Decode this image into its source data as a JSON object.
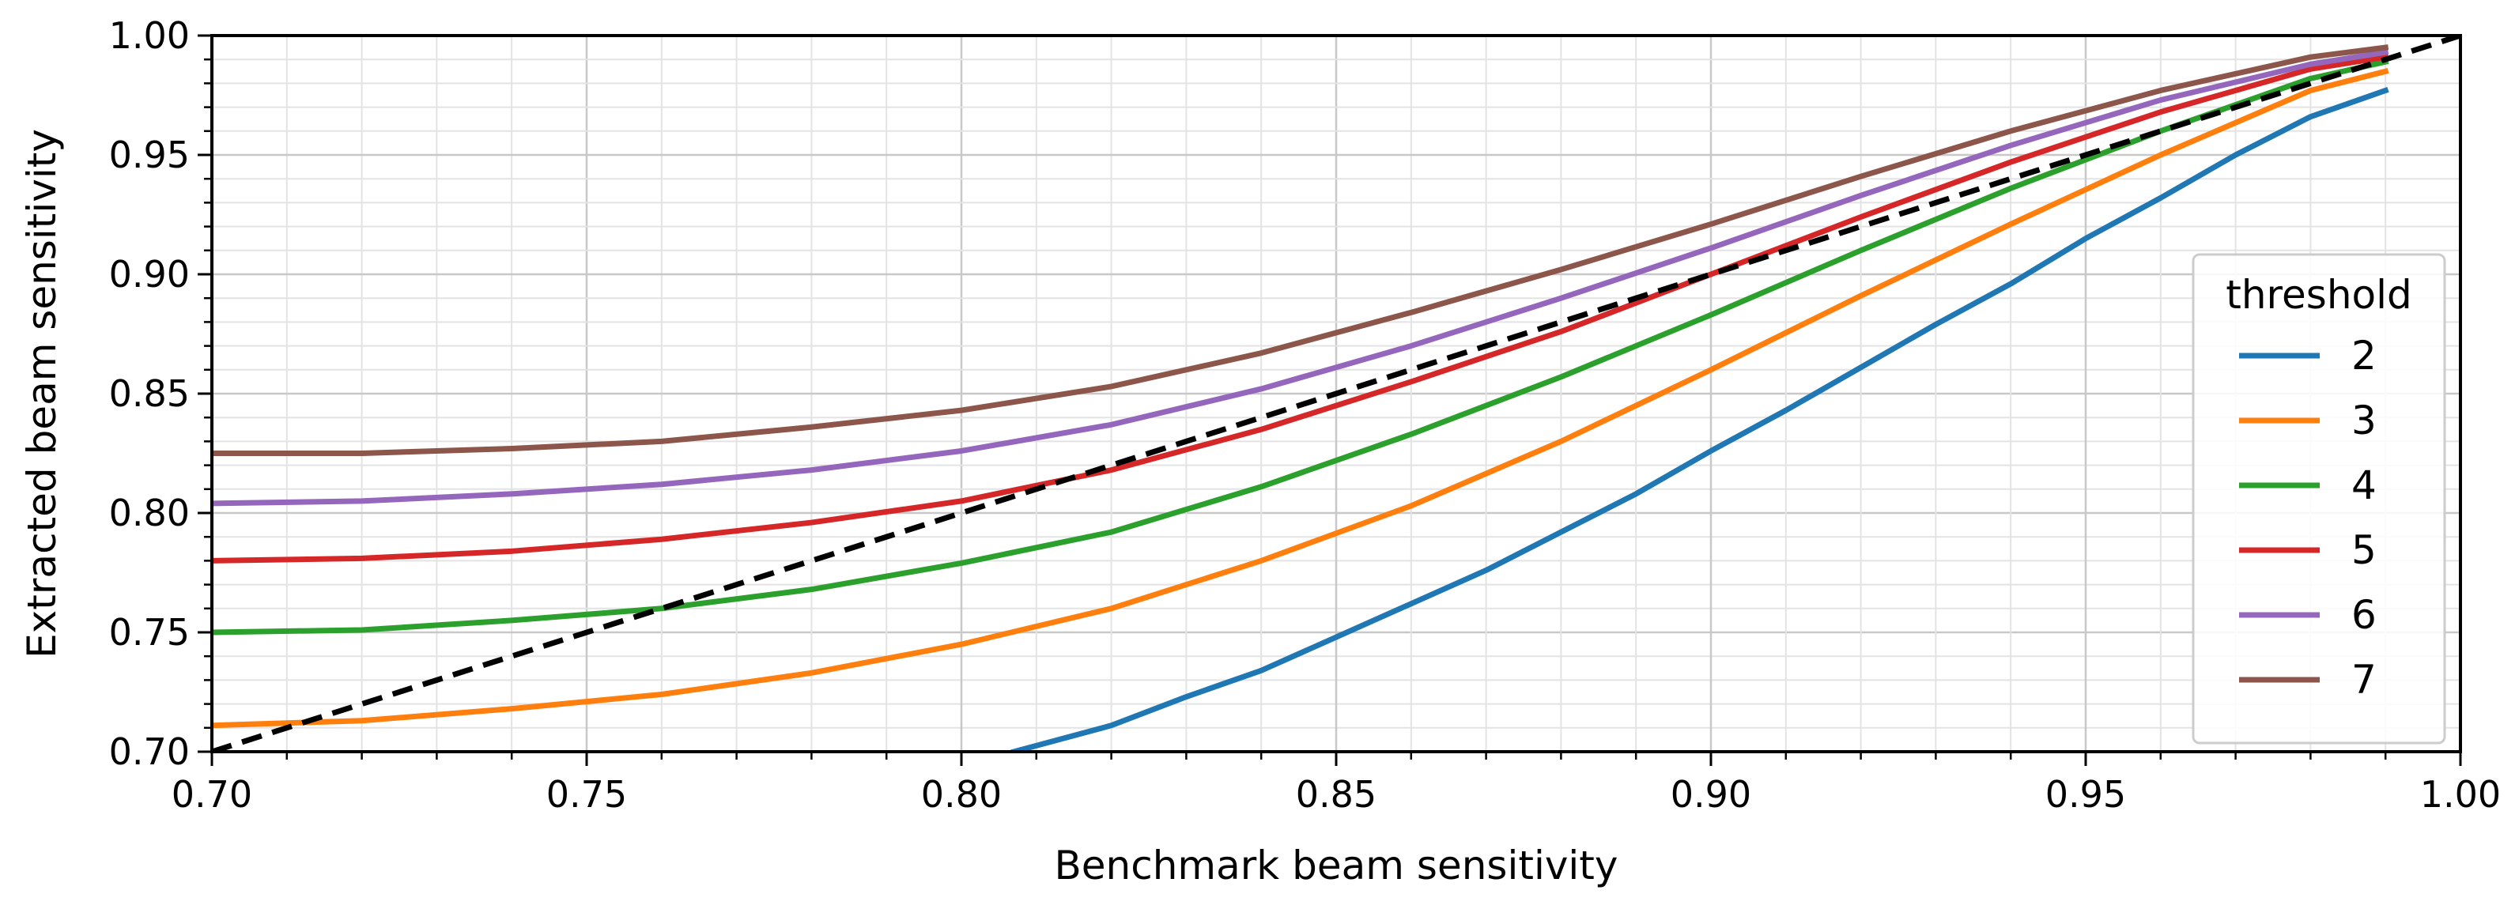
{
  "chart_data": {
    "type": "line",
    "title": "",
    "xlabel": "Benchmark beam sensitivity",
    "ylabel": "Extracted beam sensitivity",
    "xlim": [
      0.7,
      1.0
    ],
    "ylim": [
      0.7,
      1.0
    ],
    "grid": true,
    "x_ticks": [
      {
        "value": 0.7,
        "label": "0.70"
      },
      {
        "value": 0.75,
        "label": "0.75"
      },
      {
        "value": 0.8,
        "label": "0.80"
      },
      {
        "value": 0.85,
        "label": "0.85"
      },
      {
        "value": 0.9,
        "label": "0.90"
      },
      {
        "value": 0.95,
        "label": "0.95"
      },
      {
        "value": 1.0,
        "label": "1.00"
      }
    ],
    "y_ticks": [
      {
        "value": 0.7,
        "label": "0.70"
      },
      {
        "value": 0.75,
        "label": "0.75"
      },
      {
        "value": 0.8,
        "label": "0.80"
      },
      {
        "value": 0.85,
        "label": "0.85"
      },
      {
        "value": 0.9,
        "label": "0.90"
      },
      {
        "value": 0.95,
        "label": "0.95"
      },
      {
        "value": 1.0,
        "label": "1.00"
      }
    ],
    "reference_line": {
      "name": "y = x",
      "style": "dashed",
      "color": "#000000",
      "x": [
        0.7,
        1.0
      ],
      "y": [
        0.7,
        1.0
      ]
    },
    "legend": {
      "title": "threshold",
      "position": "center-right"
    },
    "x": [
      0.7,
      0.72,
      0.74,
      0.76,
      0.78,
      0.8,
      0.82,
      0.84,
      0.86,
      0.88,
      0.9,
      0.92,
      0.94,
      0.96,
      0.98,
      0.99
    ],
    "series": [
      {
        "name": "2",
        "color": "#1f77b4",
        "x": [
          0.807,
          0.82,
          0.83,
          0.84,
          0.85,
          0.86,
          0.87,
          0.88,
          0.89,
          0.9,
          0.91,
          0.92,
          0.93,
          0.94,
          0.95,
          0.96,
          0.97,
          0.98,
          0.99
        ],
        "values": [
          0.7,
          0.711,
          0.723,
          0.734,
          0.748,
          0.762,
          0.776,
          0.792,
          0.808,
          0.826,
          0.843,
          0.861,
          0.879,
          0.896,
          0.915,
          0.932,
          0.95,
          0.966,
          0.977
        ]
      },
      {
        "name": "3",
        "color": "#ff7f0e",
        "x": [
          0.7,
          0.72,
          0.74,
          0.76,
          0.78,
          0.8,
          0.82,
          0.84,
          0.86,
          0.88,
          0.9,
          0.92,
          0.94,
          0.96,
          0.98,
          0.99
        ],
        "values": [
          0.711,
          0.713,
          0.718,
          0.724,
          0.733,
          0.745,
          0.76,
          0.78,
          0.803,
          0.83,
          0.86,
          0.891,
          0.921,
          0.95,
          0.977,
          0.985
        ]
      },
      {
        "name": "4",
        "color": "#2ca02c",
        "x": [
          0.7,
          0.72,
          0.74,
          0.76,
          0.78,
          0.8,
          0.82,
          0.84,
          0.86,
          0.88,
          0.9,
          0.92,
          0.94,
          0.96,
          0.98,
          0.99
        ],
        "values": [
          0.75,
          0.751,
          0.755,
          0.76,
          0.768,
          0.779,
          0.792,
          0.811,
          0.833,
          0.857,
          0.883,
          0.91,
          0.936,
          0.96,
          0.982,
          0.989
        ]
      },
      {
        "name": "5",
        "color": "#d62728",
        "x": [
          0.7,
          0.72,
          0.74,
          0.76,
          0.78,
          0.8,
          0.82,
          0.84,
          0.86,
          0.88,
          0.9,
          0.92,
          0.94,
          0.96,
          0.98,
          0.99
        ],
        "values": [
          0.78,
          0.781,
          0.784,
          0.789,
          0.796,
          0.805,
          0.818,
          0.835,
          0.855,
          0.876,
          0.9,
          0.924,
          0.947,
          0.968,
          0.986,
          0.991
        ]
      },
      {
        "name": "6",
        "color": "#9467bd",
        "x": [
          0.7,
          0.72,
          0.74,
          0.76,
          0.78,
          0.8,
          0.82,
          0.84,
          0.86,
          0.88,
          0.9,
          0.92,
          0.94,
          0.96,
          0.98,
          0.99
        ],
        "values": [
          0.804,
          0.805,
          0.808,
          0.812,
          0.818,
          0.826,
          0.837,
          0.852,
          0.87,
          0.89,
          0.911,
          0.933,
          0.954,
          0.973,
          0.988,
          0.993
        ]
      },
      {
        "name": "7",
        "color": "#8c564b",
        "x": [
          0.7,
          0.72,
          0.74,
          0.76,
          0.78,
          0.8,
          0.82,
          0.84,
          0.86,
          0.88,
          0.9,
          0.92,
          0.94,
          0.96,
          0.98,
          0.99
        ],
        "values": [
          0.825,
          0.825,
          0.827,
          0.83,
          0.836,
          0.843,
          0.853,
          0.867,
          0.884,
          0.902,
          0.921,
          0.941,
          0.96,
          0.977,
          0.991,
          0.995
        ]
      }
    ]
  }
}
